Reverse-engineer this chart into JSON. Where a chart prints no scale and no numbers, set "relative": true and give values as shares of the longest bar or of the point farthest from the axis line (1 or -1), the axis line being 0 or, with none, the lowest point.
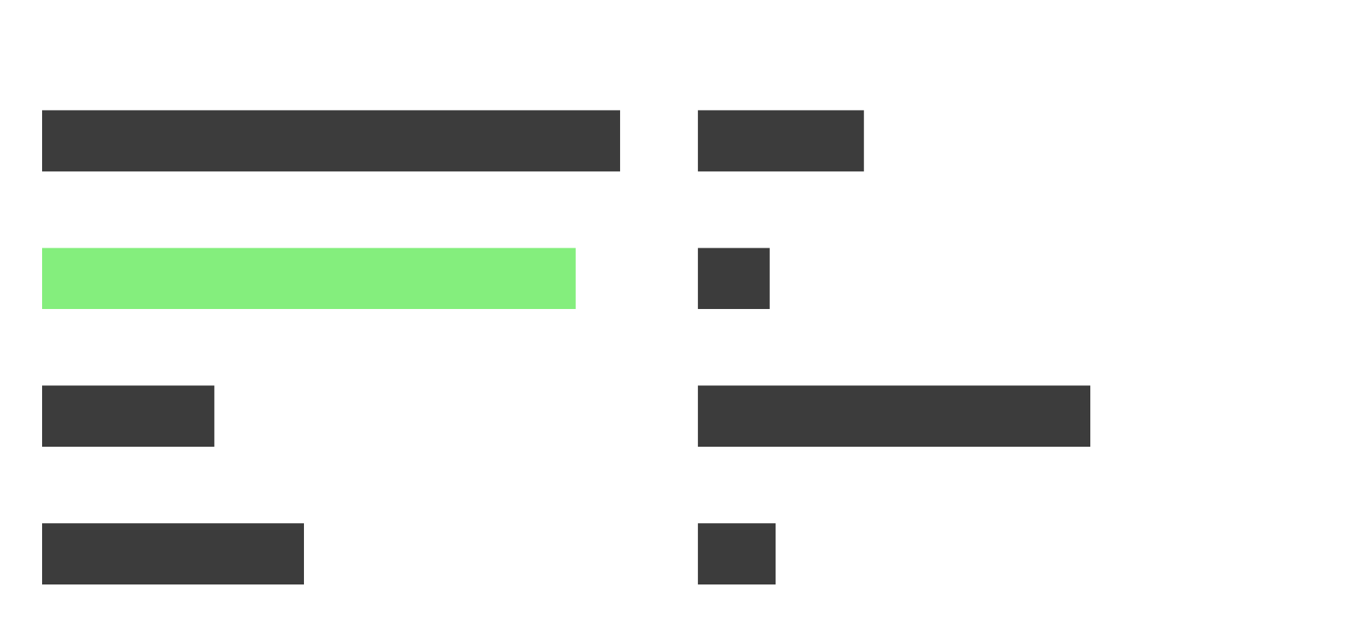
{
  "chart_data": [
    {
      "type": "bar",
      "orientation": "horizontal",
      "relative": true,
      "categories": [
        null,
        null,
        null,
        null
      ],
      "values": [
        1,
        0.923,
        0.298,
        0.453
      ],
      "colors": [
        "#3c3c3c",
        "#84ee7d",
        "#3c3c3c",
        "#3c3c3c"
      ]
    },
    {
      "type": "bar",
      "orientation": "horizontal",
      "relative": true,
      "categories": [
        null,
        null,
        null,
        null
      ],
      "values": [
        0.423,
        0.183,
        1,
        0.198
      ],
      "colors": [
        "#3c3c3c",
        "#3c3c3c",
        "#3c3c3c",
        "#3c3c3c"
      ]
    }
  ]
}
